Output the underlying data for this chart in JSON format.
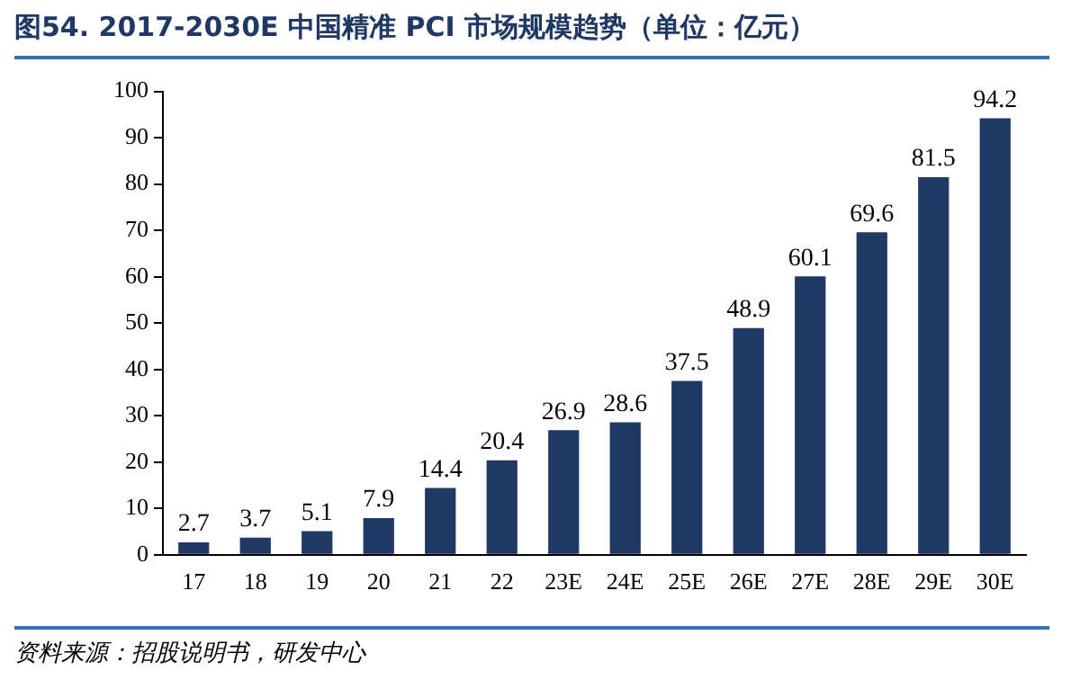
{
  "chart_data": {
    "type": "bar",
    "title": "图54. 2017-2030E 中国精准 PCI 市场规模趋势（单位：亿元）",
    "categories": [
      "17",
      "18",
      "19",
      "20",
      "21",
      "22",
      "23E",
      "24E",
      "25E",
      "26E",
      "27E",
      "28E",
      "29E",
      "30E"
    ],
    "values": [
      2.7,
      3.7,
      5.1,
      7.9,
      14.4,
      20.4,
      26.9,
      28.6,
      37.5,
      48.9,
      60.1,
      69.6,
      81.5,
      94.2
    ],
    "color": "#1f3864",
    "ylim": [
      0,
      100
    ],
    "yticks": [
      0,
      10,
      20,
      30,
      40,
      50,
      60,
      70,
      80,
      90,
      100
    ],
    "grid": false,
    "data_labels": true,
    "annotations": [
      "资料来源：招股说明书，研发中心"
    ]
  }
}
